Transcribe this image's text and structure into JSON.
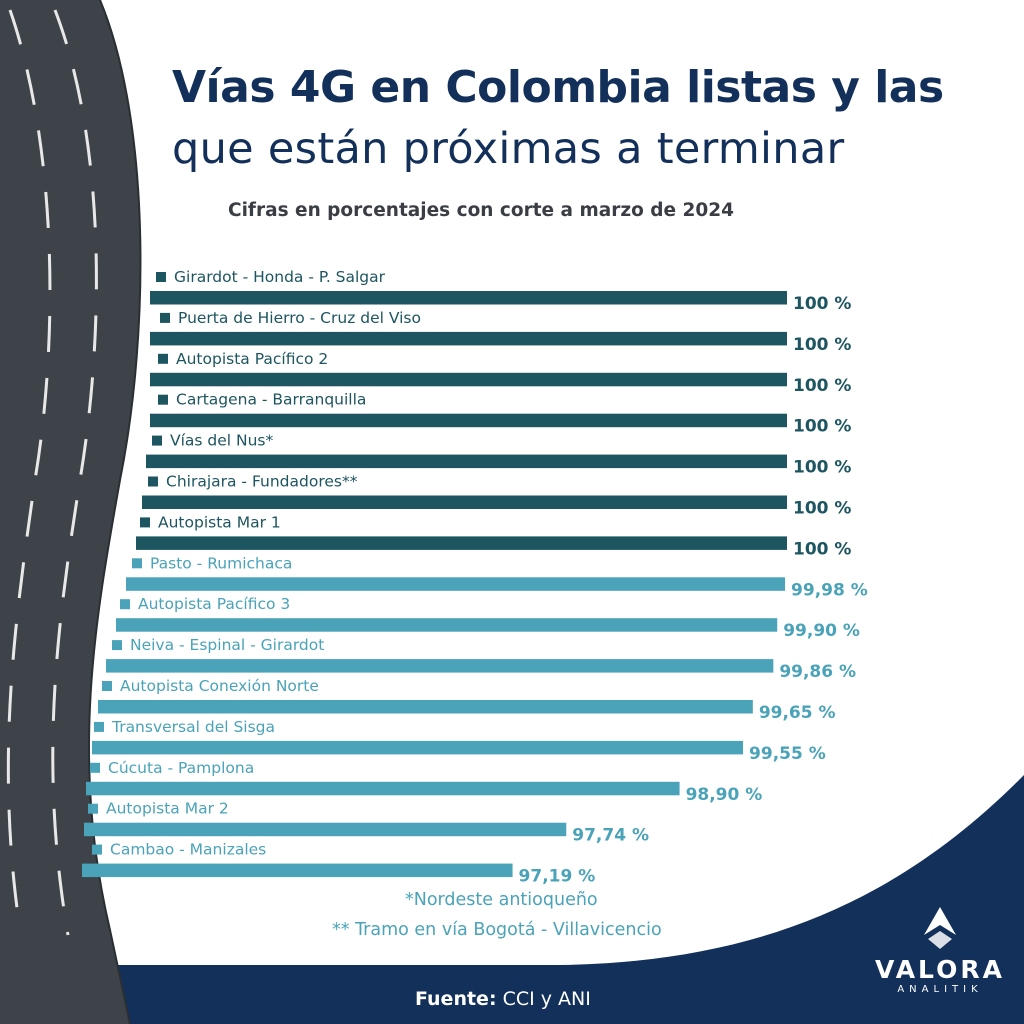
{
  "header": {
    "title_line1": "Vías 4G en Colombia listas y las",
    "title_line2": "que están próximas a terminar",
    "subtitle": "Cifras en porcentajes con corte a marzo de 2024"
  },
  "chart_data": {
    "type": "bar",
    "orientation": "horizontal",
    "unit": "%",
    "xlim": [
      97.0,
      100.0
    ],
    "grid": false,
    "legend": "none",
    "categories": [
      "Girardot - Honda - P. Salgar",
      "Puerta de Hierro - Cruz del Viso",
      "Autopista Pacífico 2",
      "Cartagena - Barranquilla",
      "Vías del Nus*",
      "Chirajara - Fundadores**",
      "Autopista Mar 1",
      "Pasto - Rumichaca",
      "Autopista Pacífico 3",
      "Neiva - Espinal - Girardot",
      "Autopista Conexión Norte",
      "Transversal del Sisga",
      "Cúcuta - Pamplona",
      "Autopista Mar 2",
      "Cambao - Manizales"
    ],
    "values": [
      100,
      100,
      100,
      100,
      100,
      100,
      100,
      99.98,
      99.9,
      99.86,
      99.65,
      99.55,
      98.9,
      97.74,
      97.19
    ],
    "value_labels": [
      "100 %",
      "100 %",
      "100 %",
      "100 %",
      "100 %",
      "100 %",
      "100 %",
      "99,98 %",
      "99,90 %",
      "99,86 %",
      "99,65 %",
      "99,55 %",
      "98,90 %",
      "97,74 %",
      "97,19 %"
    ],
    "colors": {
      "complete": "#1d5560",
      "in_progress": "#4aa3b8"
    }
  },
  "notes": {
    "note1": "*Nordeste antioqueño",
    "note2": "** Tramo en vía Bogotá - Villavicencio"
  },
  "footer": {
    "source_label": "Fuente:",
    "source_value": " CCI y ANI"
  },
  "brand": {
    "name": "VALORA",
    "tagline": "ANALITIK",
    "logo_icon": "valora-arrow-icon"
  },
  "colors": {
    "title": "#13305a",
    "road": "#3d4348",
    "footer_band": "#13305a"
  }
}
